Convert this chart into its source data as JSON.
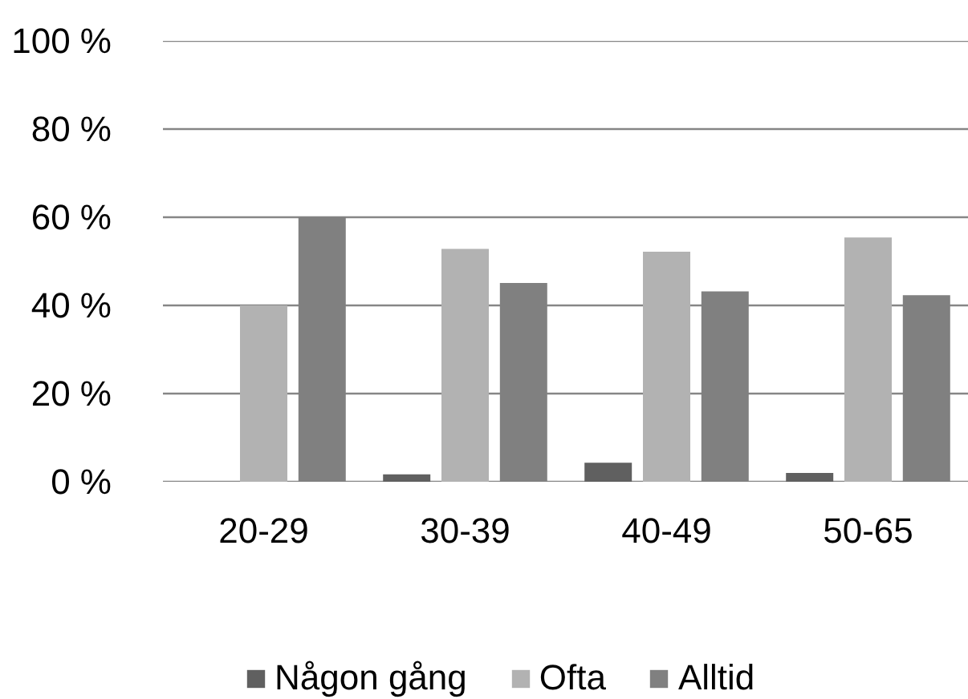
{
  "chart_data": {
    "type": "bar",
    "categories": [
      "20-29",
      "30-39",
      "40-49",
      "50-65"
    ],
    "series": [
      {
        "name": "Någon gång",
        "color": "#606060",
        "values": [
          null,
          1.7,
          4.3,
          2.0
        ]
      },
      {
        "name": "Ofta",
        "color": "#b2b2b2",
        "values": [
          40.0,
          52.8,
          52.2,
          55.4
        ]
      },
      {
        "name": "Alltid",
        "color": "#808080",
        "values": [
          60.0,
          45.1,
          43.2,
          42.3
        ]
      }
    ],
    "ylim": [
      0,
      100
    ],
    "yticks": [
      {
        "value": 0,
        "label": "0 %"
      },
      {
        "value": 20,
        "label": "20 %"
      },
      {
        "value": 40,
        "label": "40 %"
      },
      {
        "value": 60,
        "label": "60 %"
      },
      {
        "value": 80,
        "label": "80 %"
      },
      {
        "value": 100,
        "label": "100 %"
      }
    ],
    "grid": "y",
    "legend": "bottom"
  }
}
